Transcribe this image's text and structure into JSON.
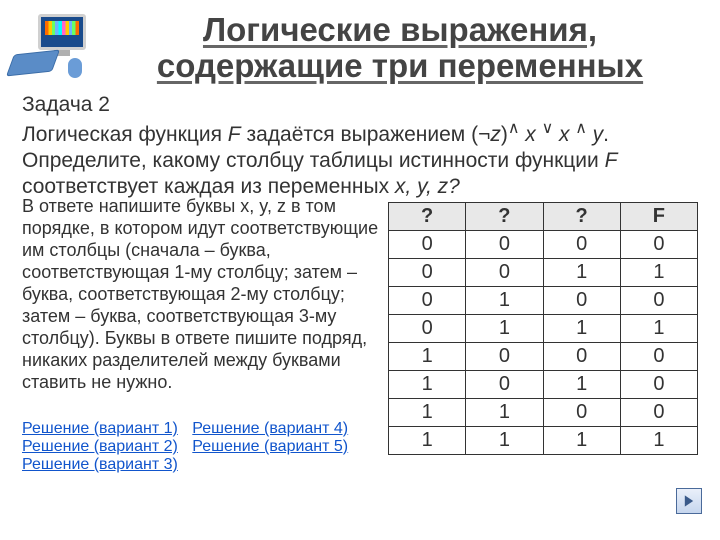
{
  "title": "Логические выражения, содержащие три переменных",
  "task_label": "Задача 2",
  "task_text_prefix": "Логическая функция ",
  "task_var_F": "F",
  "task_text_mid1": " задаётся выражением (¬",
  "task_var_z": "z",
  "task_text_mid2": ")",
  "task_op1": "∧",
  "task_sp1": " ",
  "task_var_x1": "x",
  "task_sp2": " ",
  "task_op2": "∨",
  "task_sp3": " ",
  "task_var_x2": "x",
  "task_sp4": " ",
  "task_op3": "∧",
  "task_sp5": " ",
  "task_var_y": "y",
  "task_text_mid3": ". Определите, какому столбцу таблицы истинности функции ",
  "task_var_F2": "F",
  "task_text_mid4": " соответствует каждая из переменных  ",
  "task_vars_tail": "x, y, z?",
  "instruction": "В ответе напишите буквы x, y, z в том порядке, в котором идут соответствующие им столбцы (сначала – буква, соответствующая 1-му столбцу; затем – буква, соответствующая 2-му столбцу; затем – буква, соответствующая 3-му столбцу). Буквы в ответе пишите подряд, никаких разделителей между буквами ставить не нужно.",
  "table": {
    "headers": [
      "?",
      "?",
      "?",
      "F"
    ],
    "rows": [
      [
        "0",
        "0",
        "0",
        "0"
      ],
      [
        "0",
        "0",
        "1",
        "1"
      ],
      [
        "0",
        "1",
        "0",
        "0"
      ],
      [
        "0",
        "1",
        "1",
        "1"
      ],
      [
        "1",
        "0",
        "0",
        "0"
      ],
      [
        "1",
        "0",
        "1",
        "0"
      ],
      [
        "1",
        "1",
        "0",
        "0"
      ],
      [
        "1",
        "1",
        "1",
        "1"
      ]
    ],
    "header_bg": "#e8e8e8",
    "border_color": "#333333",
    "cell_fontsize": 20
  },
  "links": {
    "l1": "Решение (вариант 1)",
    "l2": "Решение (вариант 4)",
    "l3": "Решение (вариант 2)",
    "l4": "Решение (вариант 5)",
    "l5": "Решение (вариант 3)"
  },
  "colors": {
    "text": "#333333",
    "link": "#1155cc",
    "bg": "#ffffff"
  }
}
